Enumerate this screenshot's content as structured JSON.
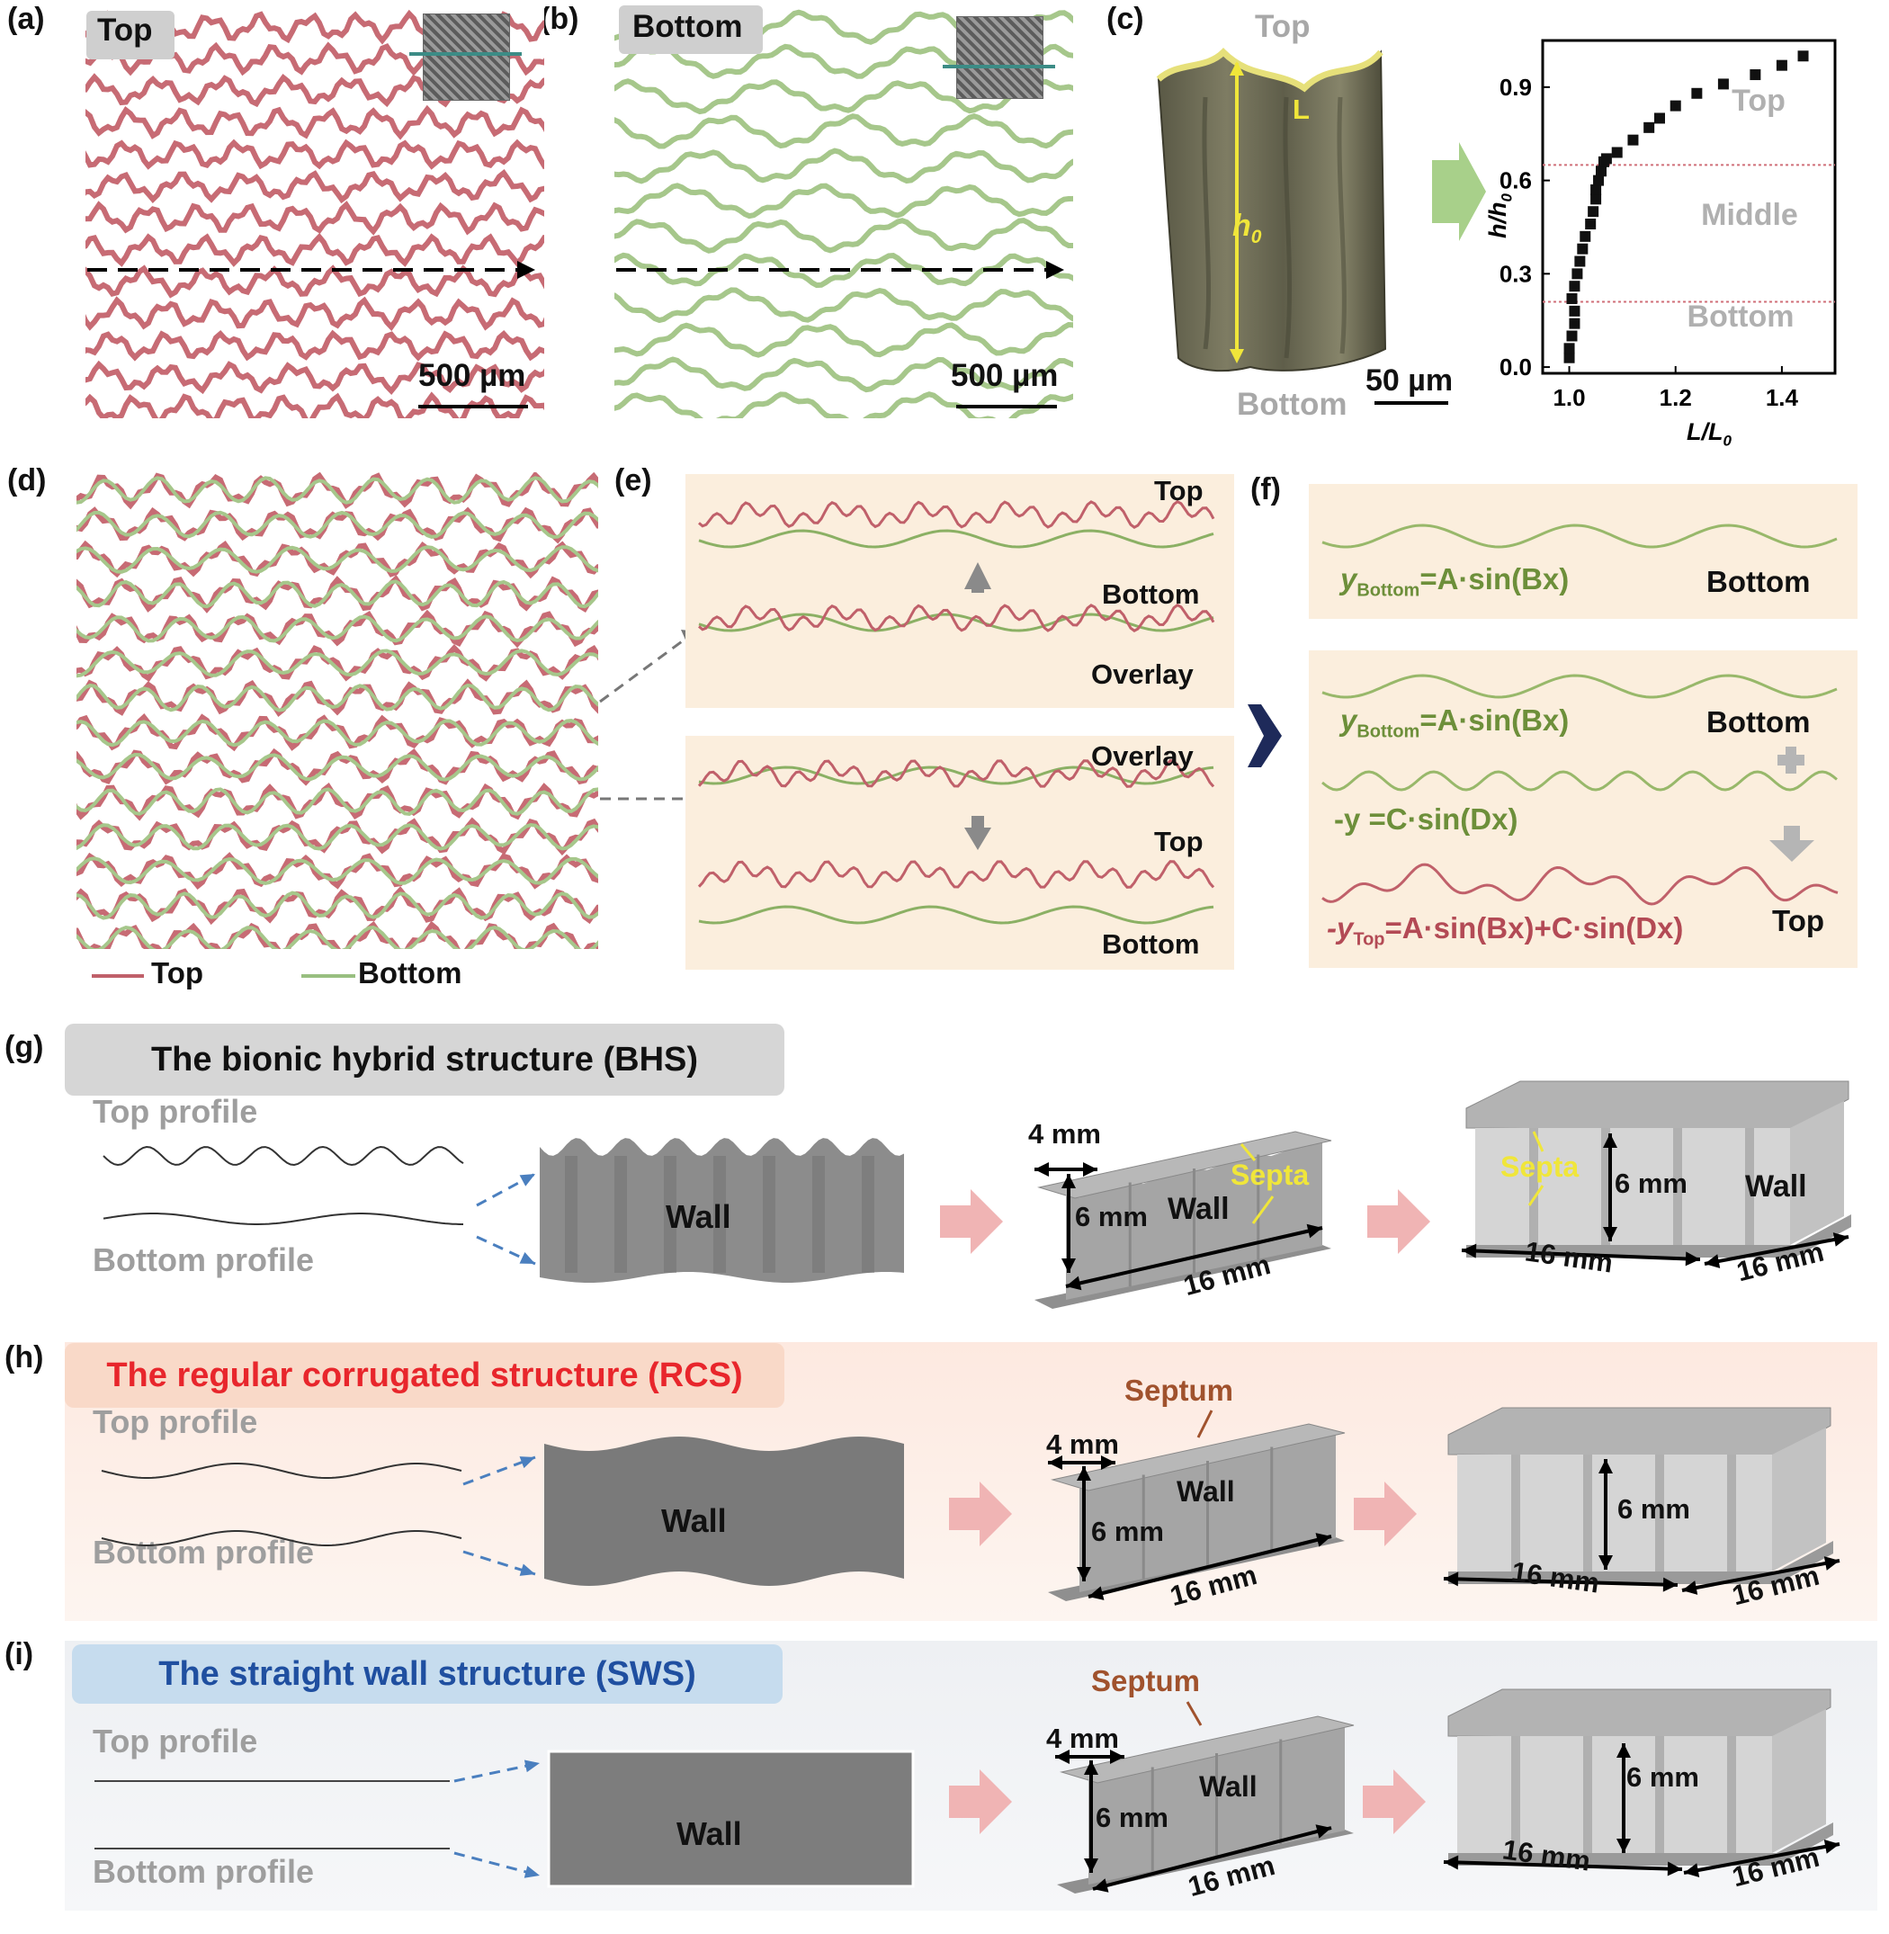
{
  "panel_labels": {
    "a": "(a)",
    "b": "(b)",
    "c": "(c)",
    "d": "(d)",
    "e": "(e)",
    "f": "(f)",
    "g": "(g)",
    "h": "(h)",
    "i": "(i)"
  },
  "panel_a": {
    "tag": "Top",
    "scale_bar": "500 µm",
    "line_color": "#c0606a"
  },
  "panel_b": {
    "tag": "Bottom",
    "scale_bar": "500 µm",
    "line_color": "#98bf80"
  },
  "panel_c": {
    "top_label": "Top",
    "bottom_label": "Bottom",
    "L_label": "L",
    "h0_base": "h",
    "h0_sub": "0",
    "scale_bar": "50 µm",
    "ylabel_base": "h/h",
    "ylabel_sub": "0",
    "xlabel_base": "L/L",
    "xlabel_sub": "0",
    "region_labels": [
      "Top",
      "Middle",
      "Bottom"
    ]
  },
  "panel_d": {
    "legend": [
      {
        "label": "Top",
        "color": "#c0606a"
      },
      {
        "label": "Bottom",
        "color": "#98bf80"
      }
    ]
  },
  "panel_e": {
    "upper": {
      "top": "Top",
      "bottom": "Bottom",
      "overlay": "Overlay"
    },
    "lower": {
      "overlay": "Overlay",
      "top": "Top",
      "bottom": "Bottom"
    }
  },
  "panel_f": {
    "eq1_y": "y",
    "eq1_sub": "Bottom",
    "eq1_rhs": "=A·sin(Bx)",
    "eq1_label": "Bottom",
    "eq2_y": "y",
    "eq2_sub": "Bottom",
    "eq2_rhs": "=A·sin(Bx)",
    "eq2_label": "Bottom",
    "eq3": "-y =C·sin(Dx)",
    "eq4_y": "-y",
    "eq4_sub": "Top",
    "eq4_rhs": "=A·sin(Bx)+C·sin(Dx)",
    "eq4_label": "Top"
  },
  "panel_g": {
    "title": "The bionic hybrid structure (BHS)",
    "top_profile": "Top profile",
    "bottom_profile": "Bottom profile",
    "wall": "Wall",
    "wall2": "Wall",
    "wall3": "Wall",
    "dim_4": "4 mm",
    "dim_6a": "6 mm",
    "dim_16a": "16 mm",
    "septa1": "Septa",
    "septa2": "Septa",
    "dim_6b": "6 mm",
    "dim_16b": "16 mm",
    "dim_16c": "16 mm"
  },
  "panel_h": {
    "title": "The regular corrugated structure (RCS)",
    "top_profile": "Top profile",
    "bottom_profile": "Bottom profile",
    "wall": "Wall",
    "wall2": "Wall",
    "septum": "Septum",
    "dim_4": "4 mm",
    "dim_6a": "6 mm",
    "dim_16a": "16 mm",
    "dim_6b": "6 mm",
    "dim_16b": "16 mm",
    "dim_16c": "16 mm"
  },
  "panel_i": {
    "title": "The straight wall structure (SWS)",
    "top_profile": "Top profile",
    "bottom_profile": "Bottom profile",
    "wall": "Wall",
    "wall2": "Wall",
    "septum": "Septum",
    "dim_4": "4 mm",
    "dim_6a": "6 mm",
    "dim_16a": "16 mm",
    "dim_6b": "6 mm",
    "dim_16b": "16 mm",
    "dim_16c": "16 mm"
  },
  "colors": {
    "top_red": "#c0606a",
    "bottom_green": "#7a9d48",
    "septa_yellow": "#f0e63a",
    "septum_brown": "#a0522d",
    "rcs_red": "#e8262c",
    "sws_blue": "#1f4fa0",
    "arrow_pink": "#f0b4b4",
    "arrow_navy": "#1e2a5a"
  },
  "chart_data": {
    "type": "scatter",
    "xlabel": "L/L0",
    "ylabel": "h/h0",
    "xlim": [
      0.95,
      1.5
    ],
    "ylim": [
      -0.02,
      1.05
    ],
    "xticks": [
      1.0,
      1.2,
      1.4
    ],
    "yticks": [
      0.0,
      0.3,
      0.6,
      0.9
    ],
    "xtick_labels": [
      "1.0",
      "1.2",
      "1.4"
    ],
    "ytick_labels": [
      "0.0",
      "0.3",
      "0.6",
      "0.9"
    ],
    "hlines": [
      0.21,
      0.65
    ],
    "series": [
      {
        "x": [
          1.0,
          1.0,
          1.005,
          1.01,
          1.01,
          1.005,
          1.01,
          1.015,
          1.02,
          1.025,
          1.03,
          1.04,
          1.045,
          1.05,
          1.05,
          1.055,
          1.06,
          1.065,
          1.07,
          1.09,
          1.12,
          1.15,
          1.17,
          1.2,
          1.24,
          1.29,
          1.35,
          1.4,
          1.44
        ],
        "y": [
          0.03,
          0.06,
          0.1,
          0.14,
          0.18,
          0.22,
          0.26,
          0.3,
          0.34,
          0.38,
          0.42,
          0.46,
          0.5,
          0.54,
          0.57,
          0.6,
          0.63,
          0.66,
          0.67,
          0.69,
          0.73,
          0.77,
          0.8,
          0.84,
          0.88,
          0.91,
          0.94,
          0.97,
          1.0
        ]
      }
    ]
  }
}
